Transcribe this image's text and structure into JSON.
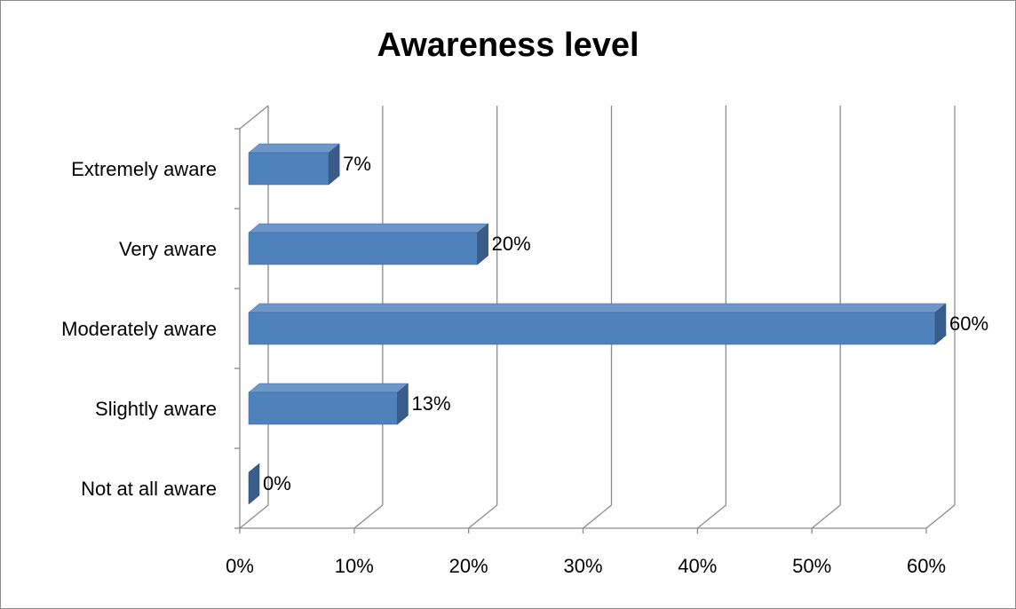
{
  "chart_data": {
    "type": "bar",
    "orientation": "horizontal",
    "three_d": true,
    "title": "Awareness level",
    "categories": [
      "Extremely aware",
      "Very aware",
      "Moderately aware",
      "Slightly aware",
      "Not at all aware"
    ],
    "values": [
      7,
      20,
      60,
      13,
      0
    ],
    "value_labels": [
      "7%",
      "20%",
      "60%",
      "13%",
      "0%"
    ],
    "xlim": [
      0,
      60
    ],
    "x_ticks": [
      0,
      10,
      20,
      30,
      40,
      50,
      60
    ],
    "x_tick_labels": [
      "0%",
      "10%",
      "20%",
      "30%",
      "40%",
      "50%",
      "60%"
    ],
    "grid": true,
    "legend": "none",
    "colors": {
      "bar_front": "#4f81bd",
      "bar_top": "#6e96c8",
      "bar_side": "#385d8a",
      "gridline": "#8c8c8c"
    }
  }
}
